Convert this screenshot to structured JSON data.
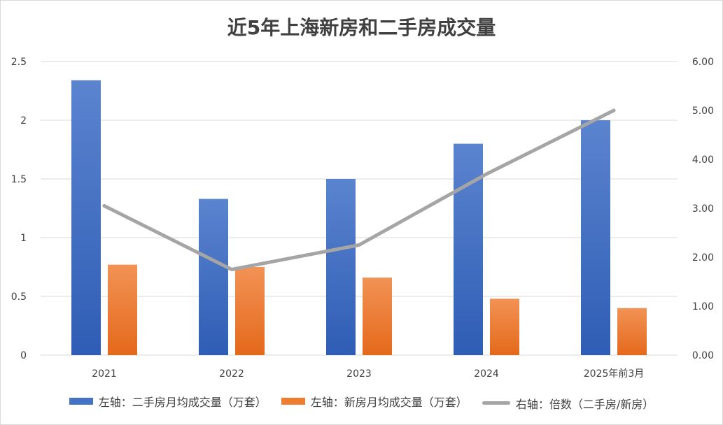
{
  "chart_data": {
    "type": "bar",
    "title": "近5年上海新房和二手房成交量",
    "categories": [
      "2021",
      "2022",
      "2023",
      "2024",
      "2025年前3月"
    ],
    "series": [
      {
        "name": "左轴：二手房月均成交量（万套）",
        "axis": "left",
        "kind": "bar",
        "color": "#4472c4",
        "values": [
          2.34,
          1.33,
          1.5,
          1.8,
          2.0
        ]
      },
      {
        "name": "左轴：新房月均成交量（万套）",
        "axis": "left",
        "kind": "bar",
        "color": "#ed7d31",
        "values": [
          0.77,
          0.75,
          0.66,
          0.48,
          0.4
        ]
      },
      {
        "name": "右轴：倍数（二手房/新房）",
        "axis": "right",
        "kind": "line",
        "color": "#a5a5a5",
        "values": [
          3.05,
          1.75,
          2.25,
          3.7,
          5.0
        ]
      }
    ],
    "left_axis": {
      "ylim": [
        0,
        2.5
      ],
      "ticks": [
        "0",
        "0.5",
        "1",
        "1.5",
        "2",
        "2.5"
      ]
    },
    "right_axis": {
      "ylim": [
        0,
        6
      ],
      "ticks": [
        "0.00",
        "1.00",
        "2.00",
        "3.00",
        "4.00",
        "5.00",
        "6.00"
      ]
    },
    "grid": true,
    "legend_position": "bottom"
  }
}
